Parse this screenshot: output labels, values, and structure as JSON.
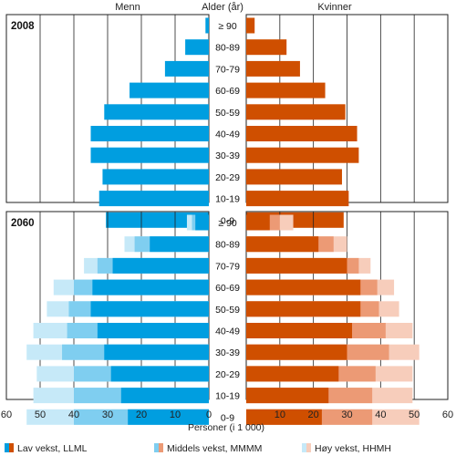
{
  "chart_data": {
    "type": "bar",
    "orientation": "horizontal",
    "layout": "population-pyramid",
    "men_label": "Menn",
    "women_label": "Kvinner",
    "age_label": "Alder (år)",
    "xlabel": "Personer (i 1 000)",
    "xlim": [
      0,
      60
    ],
    "x_ticks": [
      "60",
      "50",
      "40",
      "30",
      "20",
      "10",
      "0",
      "10",
      "20",
      "30",
      "40",
      "50",
      "60"
    ],
    "categories": [
      "≥ 90",
      "80-89",
      "70-79",
      "60-69",
      "50-59",
      "40-49",
      "30-39",
      "20-29",
      "10-19",
      "0-9"
    ],
    "grid": true,
    "legend_position": "bottom",
    "legend": [
      {
        "label": "Lav vekst, LLML",
        "men_color": "#009ee0",
        "women_color": "#cf4f00"
      },
      {
        "label": "Middels vekst, MMMM",
        "men_color": "#7fcef0",
        "women_color": "#ec9a75"
      },
      {
        "label": "Høy vekst, HHMH",
        "men_color": "#c6e9f8",
        "women_color": "#f7cdbb"
      }
    ],
    "panels": [
      {
        "year": "2008",
        "men": {
          "low": [
            1,
            7,
            13,
            23.5,
            31,
            35,
            35,
            31.5,
            32.5,
            30.5
          ]
        },
        "women": {
          "low": [
            2.5,
            12,
            16,
            23.5,
            29.5,
            33,
            33.5,
            28.5,
            30.5,
            29
          ]
        }
      },
      {
        "year": "2060",
        "men": {
          "low": [
            4,
            17.5,
            28.5,
            34.5,
            35,
            33,
            31,
            29,
            26,
            24
          ],
          "mid": [
            5,
            22,
            33,
            40,
            41.5,
            42,
            43.5,
            40,
            40,
            40
          ],
          "high": [
            6.5,
            25,
            37,
            46,
            48,
            52,
            54,
            51,
            52,
            54
          ]
        },
        "women": {
          "low": [
            7,
            21.5,
            30,
            34,
            34,
            31.5,
            30,
            27.5,
            24.5,
            22.5
          ],
          "mid": [
            10,
            26,
            33.5,
            39,
            39.5,
            41.5,
            42.5,
            38.5,
            37.5,
            37.5
          ],
          "high": [
            14,
            30,
            37,
            44,
            45.5,
            49.5,
            51.5,
            49.5,
            49.5,
            51.5
          ]
        }
      }
    ]
  }
}
